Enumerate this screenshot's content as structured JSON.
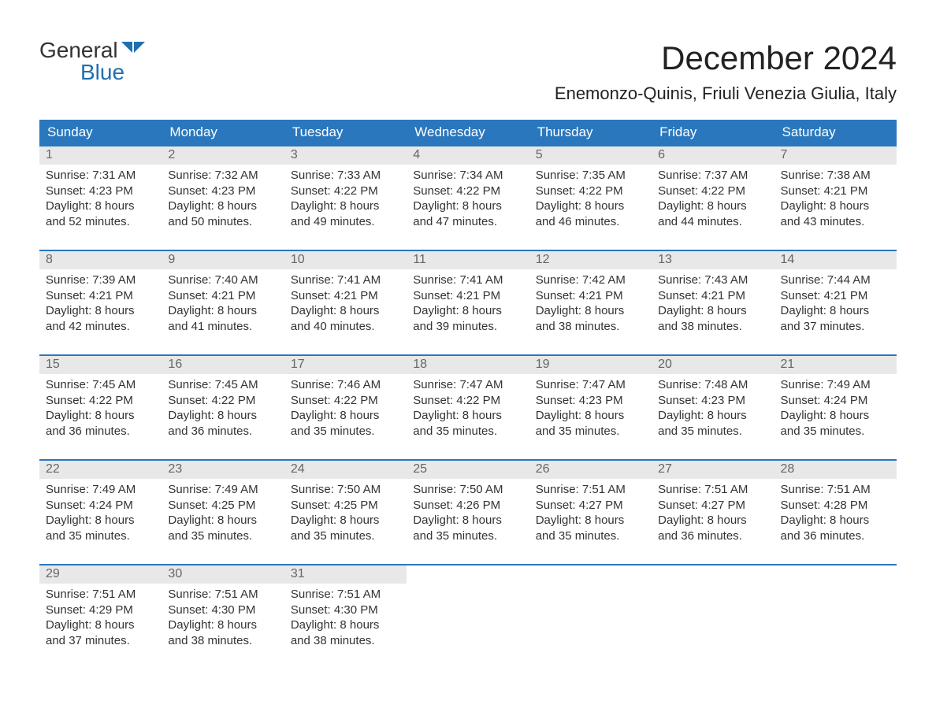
{
  "logo": {
    "line1": "General",
    "line2": "Blue"
  },
  "title": "December 2024",
  "location": "Enemonzo-Quinis, Friuli Venezia Giulia, Italy",
  "colors": {
    "header_bg": "#2a77bd",
    "header_fg": "#ffffff",
    "daynum_bg": "#e8e8e8",
    "daynum_fg": "#666666",
    "border": "#2a77bd",
    "logo_accent": "#1f6fb2",
    "text": "#333333"
  },
  "weekdays": [
    "Sunday",
    "Monday",
    "Tuesday",
    "Wednesday",
    "Thursday",
    "Friday",
    "Saturday"
  ],
  "weeks": [
    [
      {
        "n": "1",
        "sr": "7:31 AM",
        "ss": "4:23 PM",
        "dl": "8 hours and 52 minutes."
      },
      {
        "n": "2",
        "sr": "7:32 AM",
        "ss": "4:23 PM",
        "dl": "8 hours and 50 minutes."
      },
      {
        "n": "3",
        "sr": "7:33 AM",
        "ss": "4:22 PM",
        "dl": "8 hours and 49 minutes."
      },
      {
        "n": "4",
        "sr": "7:34 AM",
        "ss": "4:22 PM",
        "dl": "8 hours and 47 minutes."
      },
      {
        "n": "5",
        "sr": "7:35 AM",
        "ss": "4:22 PM",
        "dl": "8 hours and 46 minutes."
      },
      {
        "n": "6",
        "sr": "7:37 AM",
        "ss": "4:22 PM",
        "dl": "8 hours and 44 minutes."
      },
      {
        "n": "7",
        "sr": "7:38 AM",
        "ss": "4:21 PM",
        "dl": "8 hours and 43 minutes."
      }
    ],
    [
      {
        "n": "8",
        "sr": "7:39 AM",
        "ss": "4:21 PM",
        "dl": "8 hours and 42 minutes."
      },
      {
        "n": "9",
        "sr": "7:40 AM",
        "ss": "4:21 PM",
        "dl": "8 hours and 41 minutes."
      },
      {
        "n": "10",
        "sr": "7:41 AM",
        "ss": "4:21 PM",
        "dl": "8 hours and 40 minutes."
      },
      {
        "n": "11",
        "sr": "7:41 AM",
        "ss": "4:21 PM",
        "dl": "8 hours and 39 minutes."
      },
      {
        "n": "12",
        "sr": "7:42 AM",
        "ss": "4:21 PM",
        "dl": "8 hours and 38 minutes."
      },
      {
        "n": "13",
        "sr": "7:43 AM",
        "ss": "4:21 PM",
        "dl": "8 hours and 38 minutes."
      },
      {
        "n": "14",
        "sr": "7:44 AM",
        "ss": "4:21 PM",
        "dl": "8 hours and 37 minutes."
      }
    ],
    [
      {
        "n": "15",
        "sr": "7:45 AM",
        "ss": "4:22 PM",
        "dl": "8 hours and 36 minutes."
      },
      {
        "n": "16",
        "sr": "7:45 AM",
        "ss": "4:22 PM",
        "dl": "8 hours and 36 minutes."
      },
      {
        "n": "17",
        "sr": "7:46 AM",
        "ss": "4:22 PM",
        "dl": "8 hours and 35 minutes."
      },
      {
        "n": "18",
        "sr": "7:47 AM",
        "ss": "4:22 PM",
        "dl": "8 hours and 35 minutes."
      },
      {
        "n": "19",
        "sr": "7:47 AM",
        "ss": "4:23 PM",
        "dl": "8 hours and 35 minutes."
      },
      {
        "n": "20",
        "sr": "7:48 AM",
        "ss": "4:23 PM",
        "dl": "8 hours and 35 minutes."
      },
      {
        "n": "21",
        "sr": "7:49 AM",
        "ss": "4:24 PM",
        "dl": "8 hours and 35 minutes."
      }
    ],
    [
      {
        "n": "22",
        "sr": "7:49 AM",
        "ss": "4:24 PM",
        "dl": "8 hours and 35 minutes."
      },
      {
        "n": "23",
        "sr": "7:49 AM",
        "ss": "4:25 PM",
        "dl": "8 hours and 35 minutes."
      },
      {
        "n": "24",
        "sr": "7:50 AM",
        "ss": "4:25 PM",
        "dl": "8 hours and 35 minutes."
      },
      {
        "n": "25",
        "sr": "7:50 AM",
        "ss": "4:26 PM",
        "dl": "8 hours and 35 minutes."
      },
      {
        "n": "26",
        "sr": "7:51 AM",
        "ss": "4:27 PM",
        "dl": "8 hours and 35 minutes."
      },
      {
        "n": "27",
        "sr": "7:51 AM",
        "ss": "4:27 PM",
        "dl": "8 hours and 36 minutes."
      },
      {
        "n": "28",
        "sr": "7:51 AM",
        "ss": "4:28 PM",
        "dl": "8 hours and 36 minutes."
      }
    ],
    [
      {
        "n": "29",
        "sr": "7:51 AM",
        "ss": "4:29 PM",
        "dl": "8 hours and 37 minutes."
      },
      {
        "n": "30",
        "sr": "7:51 AM",
        "ss": "4:30 PM",
        "dl": "8 hours and 38 minutes."
      },
      {
        "n": "31",
        "sr": "7:51 AM",
        "ss": "4:30 PM",
        "dl": "8 hours and 38 minutes."
      },
      null,
      null,
      null,
      null
    ]
  ],
  "labels": {
    "sunrise": "Sunrise:",
    "sunset": "Sunset:",
    "daylight": "Daylight:"
  }
}
